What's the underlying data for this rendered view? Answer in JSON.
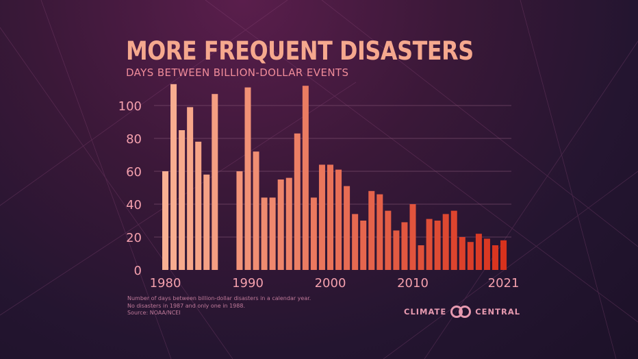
{
  "title": "MORE FREQUENT DISASTERS",
  "subtitle": "DAYS BETWEEN BILLION-DOLLAR EVENTS",
  "footnote": [
    "Number of days between billion-dollar disasters in a calendar year.",
    "No disasters in 1987 and only one in 1988.",
    "Source: NOAA/NCEI"
  ],
  "logo": {
    "left": "CLIMATE",
    "right": "CENTRAL",
    "icon": "climate-central-logo-icon"
  },
  "colors": {
    "bar_early": "#f9b093",
    "bar_late": "#d8321d",
    "grid": "#8a5a7a",
    "tick_label": "#f4a0ad",
    "background": "#2a1633"
  },
  "chart_data": {
    "type": "bar",
    "title": "MORE FREQUENT DISASTERS",
    "subtitle": "DAYS BETWEEN BILLION-DOLLAR EVENTS",
    "x": [
      1980,
      1981,
      1982,
      1983,
      1984,
      1985,
      1986,
      1987,
      1988,
      1989,
      1990,
      1991,
      1992,
      1993,
      1994,
      1995,
      1996,
      1997,
      1998,
      1999,
      2000,
      2001,
      2002,
      2003,
      2004,
      2005,
      2006,
      2007,
      2008,
      2009,
      2010,
      2011,
      2012,
      2013,
      2014,
      2015,
      2016,
      2017,
      2018,
      2019,
      2020,
      2021
    ],
    "values": [
      60,
      113,
      85,
      99,
      78,
      58,
      107,
      null,
      null,
      60,
      111,
      72,
      44,
      44,
      55,
      56,
      83,
      112,
      44,
      64,
      64,
      61,
      51,
      34,
      30,
      48,
      46,
      36,
      24,
      29,
      40,
      15,
      31,
      30,
      34,
      36,
      20,
      17,
      22,
      19,
      15,
      18
    ],
    "x_tick_labels": [
      "1980",
      "1990",
      "2000",
      "2010",
      "2021"
    ],
    "y_tick_labels": [
      "0",
      "20",
      "40",
      "60",
      "80",
      "100"
    ],
    "ylim": [
      0,
      115
    ],
    "grid": true
  }
}
